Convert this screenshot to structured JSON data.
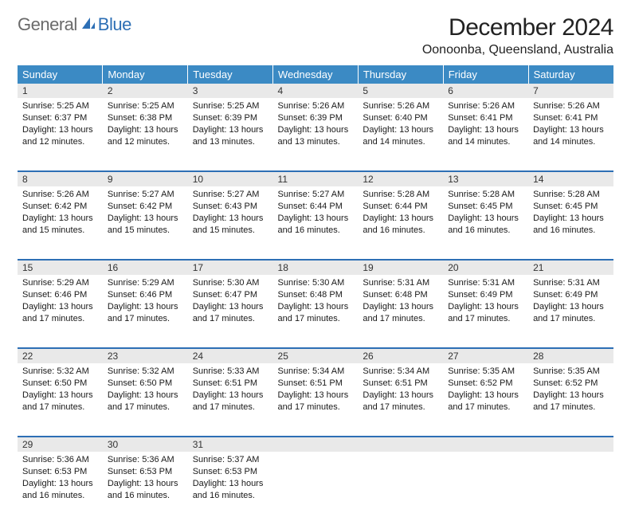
{
  "logo": {
    "text1": "General",
    "text2": "Blue"
  },
  "title": "December 2024",
  "location": "Oonoonba, Queensland, Australia",
  "colors": {
    "header_bg": "#3b8ac4",
    "header_text": "#ffffff",
    "daynum_bg": "#e9e9e9",
    "week_separator": "#2d6fb5",
    "logo_gray": "#6a6a6a",
    "logo_blue": "#2d6fb5",
    "page_bg": "#ffffff",
    "text": "#1a1a1a"
  },
  "weekdays": [
    "Sunday",
    "Monday",
    "Tuesday",
    "Wednesday",
    "Thursday",
    "Friday",
    "Saturday"
  ],
  "days": [
    {
      "n": 1,
      "sr": "5:25 AM",
      "ss": "6:37 PM",
      "dl": "13 hours and 12 minutes."
    },
    {
      "n": 2,
      "sr": "5:25 AM",
      "ss": "6:38 PM",
      "dl": "13 hours and 12 minutes."
    },
    {
      "n": 3,
      "sr": "5:25 AM",
      "ss": "6:39 PM",
      "dl": "13 hours and 13 minutes."
    },
    {
      "n": 4,
      "sr": "5:26 AM",
      "ss": "6:39 PM",
      "dl": "13 hours and 13 minutes."
    },
    {
      "n": 5,
      "sr": "5:26 AM",
      "ss": "6:40 PM",
      "dl": "13 hours and 14 minutes."
    },
    {
      "n": 6,
      "sr": "5:26 AM",
      "ss": "6:41 PM",
      "dl": "13 hours and 14 minutes."
    },
    {
      "n": 7,
      "sr": "5:26 AM",
      "ss": "6:41 PM",
      "dl": "13 hours and 14 minutes."
    },
    {
      "n": 8,
      "sr": "5:26 AM",
      "ss": "6:42 PM",
      "dl": "13 hours and 15 minutes."
    },
    {
      "n": 9,
      "sr": "5:27 AM",
      "ss": "6:42 PM",
      "dl": "13 hours and 15 minutes."
    },
    {
      "n": 10,
      "sr": "5:27 AM",
      "ss": "6:43 PM",
      "dl": "13 hours and 15 minutes."
    },
    {
      "n": 11,
      "sr": "5:27 AM",
      "ss": "6:44 PM",
      "dl": "13 hours and 16 minutes."
    },
    {
      "n": 12,
      "sr": "5:28 AM",
      "ss": "6:44 PM",
      "dl": "13 hours and 16 minutes."
    },
    {
      "n": 13,
      "sr": "5:28 AM",
      "ss": "6:45 PM",
      "dl": "13 hours and 16 minutes."
    },
    {
      "n": 14,
      "sr": "5:28 AM",
      "ss": "6:45 PM",
      "dl": "13 hours and 16 minutes."
    },
    {
      "n": 15,
      "sr": "5:29 AM",
      "ss": "6:46 PM",
      "dl": "13 hours and 17 minutes."
    },
    {
      "n": 16,
      "sr": "5:29 AM",
      "ss": "6:46 PM",
      "dl": "13 hours and 17 minutes."
    },
    {
      "n": 17,
      "sr": "5:30 AM",
      "ss": "6:47 PM",
      "dl": "13 hours and 17 minutes."
    },
    {
      "n": 18,
      "sr": "5:30 AM",
      "ss": "6:48 PM",
      "dl": "13 hours and 17 minutes."
    },
    {
      "n": 19,
      "sr": "5:31 AM",
      "ss": "6:48 PM",
      "dl": "13 hours and 17 minutes."
    },
    {
      "n": 20,
      "sr": "5:31 AM",
      "ss": "6:49 PM",
      "dl": "13 hours and 17 minutes."
    },
    {
      "n": 21,
      "sr": "5:31 AM",
      "ss": "6:49 PM",
      "dl": "13 hours and 17 minutes."
    },
    {
      "n": 22,
      "sr": "5:32 AM",
      "ss": "6:50 PM",
      "dl": "13 hours and 17 minutes."
    },
    {
      "n": 23,
      "sr": "5:32 AM",
      "ss": "6:50 PM",
      "dl": "13 hours and 17 minutes."
    },
    {
      "n": 24,
      "sr": "5:33 AM",
      "ss": "6:51 PM",
      "dl": "13 hours and 17 minutes."
    },
    {
      "n": 25,
      "sr": "5:34 AM",
      "ss": "6:51 PM",
      "dl": "13 hours and 17 minutes."
    },
    {
      "n": 26,
      "sr": "5:34 AM",
      "ss": "6:51 PM",
      "dl": "13 hours and 17 minutes."
    },
    {
      "n": 27,
      "sr": "5:35 AM",
      "ss": "6:52 PM",
      "dl": "13 hours and 17 minutes."
    },
    {
      "n": 28,
      "sr": "5:35 AM",
      "ss": "6:52 PM",
      "dl": "13 hours and 17 minutes."
    },
    {
      "n": 29,
      "sr": "5:36 AM",
      "ss": "6:53 PM",
      "dl": "13 hours and 16 minutes."
    },
    {
      "n": 30,
      "sr": "5:36 AM",
      "ss": "6:53 PM",
      "dl": "13 hours and 16 minutes."
    },
    {
      "n": 31,
      "sr": "5:37 AM",
      "ss": "6:53 PM",
      "dl": "13 hours and 16 minutes."
    }
  ],
  "labels": {
    "sunrise": "Sunrise:",
    "sunset": "Sunset:",
    "daylight": "Daylight:"
  }
}
